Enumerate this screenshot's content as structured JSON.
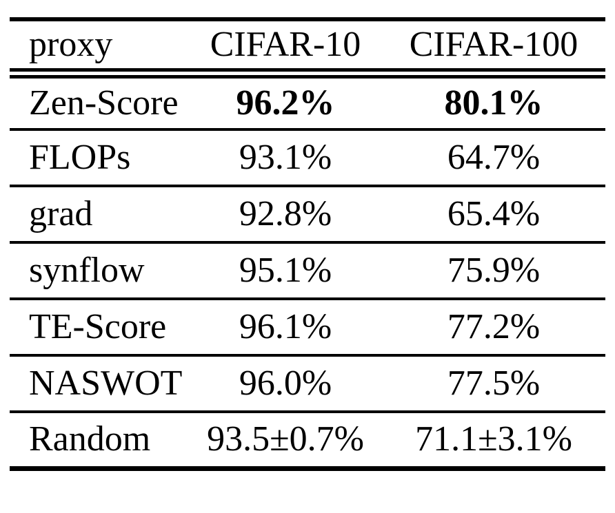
{
  "page": {
    "background_color": "#ffffff",
    "text_color": "#000000",
    "rule_color": "#000000"
  },
  "chart_data": {
    "type": "table",
    "columns": [
      "proxy",
      "CIFAR-10",
      "CIFAR-100"
    ],
    "rows": [
      [
        "Zen-Score",
        "96.2%",
        "80.1%"
      ],
      [
        "FLOPs",
        "93.1%",
        "64.7%"
      ],
      [
        "grad",
        "92.8%",
        "65.4%"
      ],
      [
        "synflow",
        "95.1%",
        "75.9%"
      ],
      [
        "TE-Score",
        "96.1%",
        "77.2%"
      ],
      [
        "NASWOT",
        "96.0%",
        "77.5%"
      ],
      [
        "Random",
        "93.5±0.7%",
        "71.1±3.1%"
      ]
    ],
    "emphasis": {
      "row_label": "Zen-Score",
      "row_index": 0,
      "bold_columns": [
        1,
        2
      ]
    },
    "layout": {
      "top_rule": "thick",
      "header_rule": "double",
      "row_rules": "single",
      "bottom_rule": "thick",
      "grid": "horizontal-only"
    }
  }
}
